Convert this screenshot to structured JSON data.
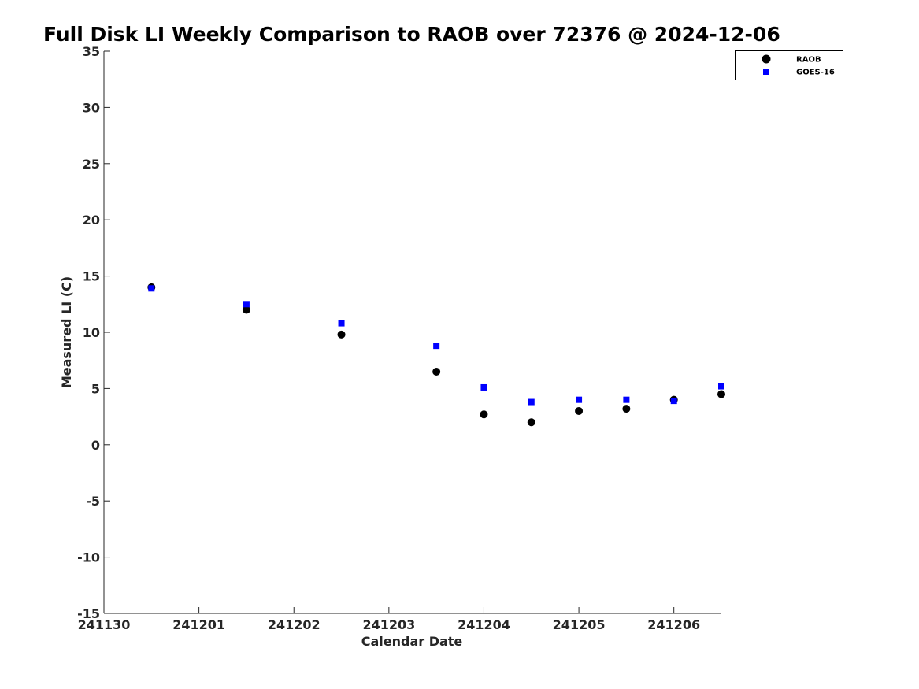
{
  "chart_data": {
    "type": "scatter",
    "title": "Full Disk LI Weekly Comparison to RAOB over 72376 @ 2024-12-06",
    "xlabel": "Calendar Date",
    "ylabel": "Measured LI (C)",
    "xlim": [
      "241130",
      "241206.5"
    ],
    "ylim": [
      -15,
      35
    ],
    "x_ticks": [
      "241130",
      "241201",
      "241202",
      "241203",
      "241204",
      "241205",
      "241206"
    ],
    "y_ticks": [
      35,
      30,
      25,
      20,
      15,
      10,
      5,
      0,
      -5,
      -10,
      -15
    ],
    "grid": false,
    "legend_position": "top-right",
    "series": [
      {
        "name": "RAOB",
        "marker": "circle",
        "color": "#000000",
        "points": [
          {
            "x": "241130 12Z",
            "y": 14.0
          },
          {
            "x": "241201 12Z",
            "y": 12.0
          },
          {
            "x": "241202 12Z",
            "y": 9.8
          },
          {
            "x": "241203 12Z",
            "y": 6.5
          },
          {
            "x": "241204 00Z",
            "y": 2.7
          },
          {
            "x": "241204 12Z",
            "y": 2.0
          },
          {
            "x": "241205 00Z",
            "y": 3.0
          },
          {
            "x": "241205 12Z",
            "y": 3.2
          },
          {
            "x": "241206 00Z",
            "y": 4.0
          },
          {
            "x": "241206 12Z",
            "y": 4.5
          }
        ]
      },
      {
        "name": "GOES-16",
        "marker": "square",
        "color": "#0000ff",
        "points": [
          {
            "x": "241130 12Z",
            "y": 13.9
          },
          {
            "x": "241201 12Z",
            "y": 12.5
          },
          {
            "x": "241202 12Z",
            "y": 10.8
          },
          {
            "x": "241203 12Z",
            "y": 8.8
          },
          {
            "x": "241204 00Z",
            "y": 5.1
          },
          {
            "x": "241204 12Z",
            "y": 3.8
          },
          {
            "x": "241205 00Z",
            "y": 4.0
          },
          {
            "x": "241205 12Z",
            "y": 4.0
          },
          {
            "x": "241206 00Z",
            "y": 3.9
          },
          {
            "x": "241206 12Z",
            "y": 5.2
          }
        ]
      }
    ]
  }
}
